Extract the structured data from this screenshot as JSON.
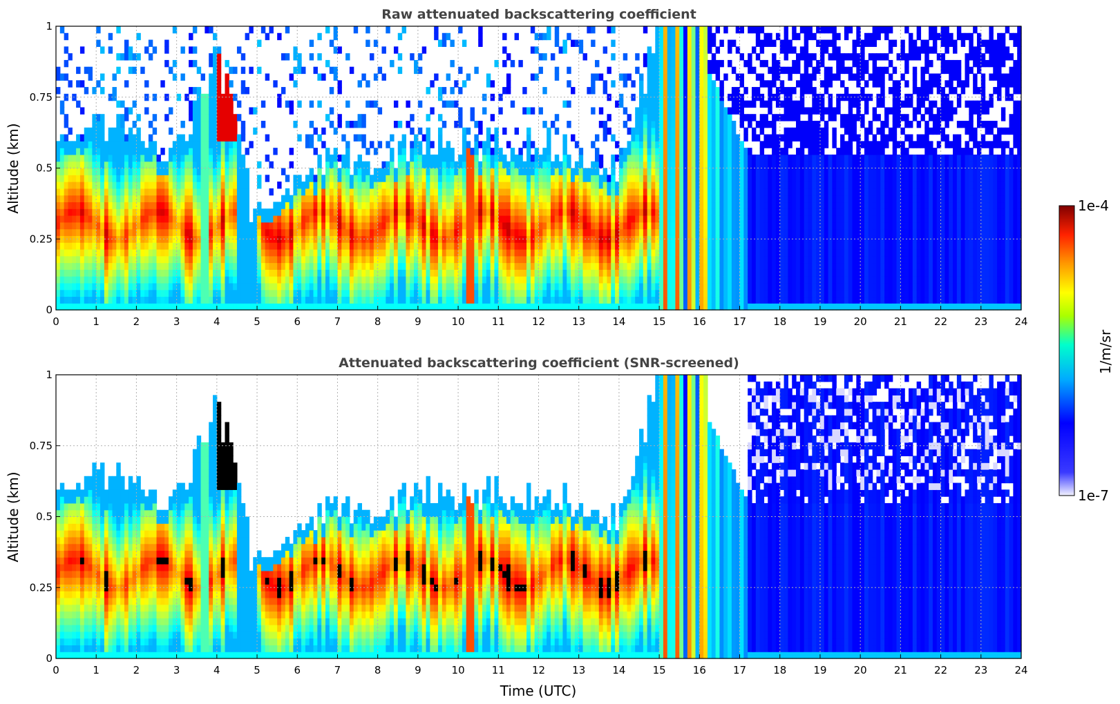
{
  "chart_data": [
    {
      "type": "heatmap",
      "title": "Raw attenuated backscattering coefficient",
      "xlabel": "",
      "ylabel": "Altitude (km)",
      "xlim": [
        0,
        24
      ],
      "ylim": [
        0,
        1
      ],
      "x_ticks": [
        "0",
        "1",
        "2",
        "3",
        "4",
        "5",
        "6",
        "7",
        "8",
        "9",
        "10",
        "11",
        "12",
        "13",
        "14",
        "15",
        "16",
        "17",
        "18",
        "19",
        "20",
        "21",
        "22",
        "23",
        "24"
      ],
      "y_ticks": [
        "0",
        "0.25",
        "0.5",
        "0.75",
        "1"
      ],
      "grid": true,
      "colormap": "jet",
      "screened": false,
      "features": {
        "layer_top_km_by_hour": [
          0.6,
          0.65,
          0.6,
          0.55,
          0.9,
          0.4,
          0.45,
          0.55,
          0.5,
          0.6,
          0.55,
          0.6,
          0.55,
          0.55,
          0.5,
          1.0,
          0.95,
          0.9
        ],
        "strong_core_km": 0.3,
        "rain_hours": [
          15,
          16.2
        ],
        "low_signal_after_hour": 16.5
      }
    },
    {
      "type": "heatmap",
      "title": "Attenuated backscattering coefficient (SNR-screened)",
      "xlabel": "Time (UTC)",
      "ylabel": "Altitude (km)",
      "xlim": [
        0,
        24
      ],
      "ylim": [
        0,
        1
      ],
      "x_ticks": [
        "0",
        "1",
        "2",
        "3",
        "4",
        "5",
        "6",
        "7",
        "8",
        "9",
        "10",
        "11",
        "12",
        "13",
        "14",
        "15",
        "16",
        "17",
        "18",
        "19",
        "20",
        "21",
        "22",
        "23",
        "24"
      ],
      "y_ticks": [
        "0",
        "0.25",
        "0.5",
        "0.75",
        "1"
      ],
      "grid": true,
      "colormap": "jet",
      "screened": true
    }
  ],
  "colorbar": {
    "label": "1/m/sr",
    "max_label": "1e-4",
    "min_label": "1e-7",
    "colors": [
      "#f2f2ff",
      "#7f00ff",
      "#0000ff",
      "#00b2ff",
      "#00ffcc",
      "#a6ff00",
      "#ffff00",
      "#ff9900",
      "#ff2200",
      "#800000"
    ]
  }
}
